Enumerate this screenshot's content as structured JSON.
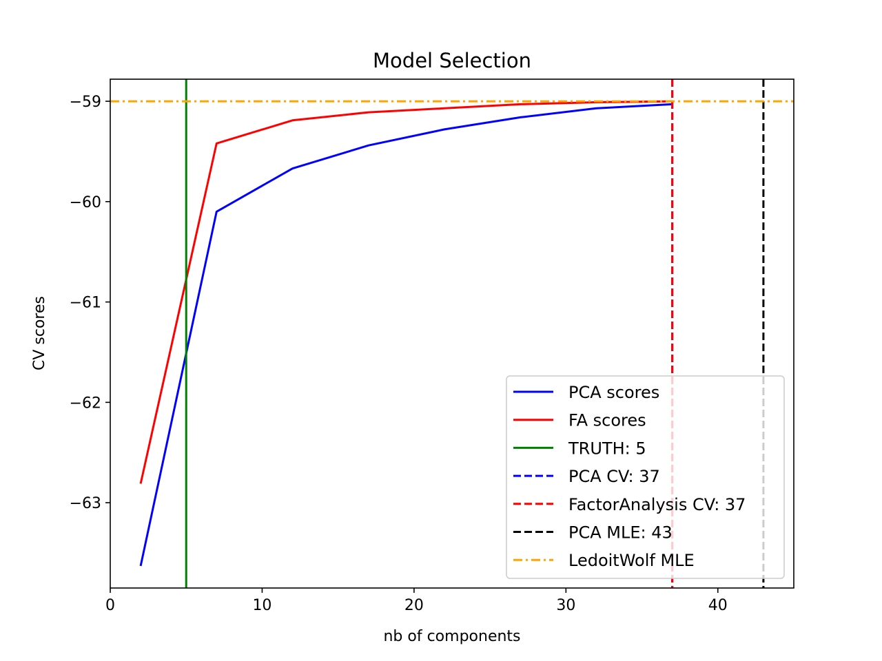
{
  "chart_data": {
    "type": "line",
    "title": "Model Selection",
    "xlabel": "nb of components",
    "ylabel": "CV scores",
    "xlim": [
      0,
      45
    ],
    "ylim": [
      -63.85,
      -58.78
    ],
    "xticks": [
      0,
      10,
      20,
      30,
      40
    ],
    "xtick_labels": [
      "0",
      "10",
      "20",
      "30",
      "40"
    ],
    "yticks": [
      -59,
      -60,
      -61,
      -62,
      -63
    ],
    "ytick_labels": [
      "−59",
      "−60",
      "−61",
      "−62",
      "−63"
    ],
    "grid": false,
    "legend_position": "lower-right",
    "series": [
      {
        "name": "PCA scores",
        "color": "#0000ff",
        "style": "solid",
        "x": [
          2,
          7,
          12,
          17,
          22,
          27,
          32,
          37
        ],
        "y": [
          -63.63,
          -60.1,
          -59.67,
          -59.44,
          -59.28,
          -59.16,
          -59.07,
          -59.03
        ]
      },
      {
        "name": "FA scores",
        "color": "#ff0000",
        "style": "solid",
        "x": [
          2,
          7,
          12,
          17,
          22,
          27,
          32,
          37
        ],
        "y": [
          -62.81,
          -59.42,
          -59.19,
          -59.11,
          -59.07,
          -59.03,
          -59.01,
          -59.0
        ]
      }
    ],
    "vlines": [
      {
        "name": "TRUTH: 5",
        "x": 5,
        "color": "#008000",
        "style": "solid"
      },
      {
        "name": "PCA CV: 37",
        "x": 37,
        "color": "#0000ff",
        "style": "dashed"
      },
      {
        "name": "FactorAnalysis CV: 37",
        "x": 37,
        "color": "#ff0000",
        "style": "dashed"
      },
      {
        "name": "PCA MLE: 43",
        "x": 43,
        "color": "#000000",
        "style": "dashed"
      }
    ],
    "hlines": [
      {
        "name": "LedoitWolf MLE",
        "y": -59.0,
        "color": "#ffa500",
        "style": "dashdot"
      }
    ],
    "legend": [
      {
        "label": "PCA scores",
        "color": "#0000ff",
        "style": "solid"
      },
      {
        "label": "FA scores",
        "color": "#ff0000",
        "style": "solid"
      },
      {
        "label": "TRUTH: 5",
        "color": "#008000",
        "style": "solid"
      },
      {
        "label": "PCA CV: 37",
        "color": "#0000ff",
        "style": "dashed"
      },
      {
        "label": "FactorAnalysis CV: 37",
        "color": "#ff0000",
        "style": "dashed"
      },
      {
        "label": "PCA MLE: 43",
        "color": "#000000",
        "style": "dashed"
      },
      {
        "label": "LedoitWolf MLE",
        "color": "#ffa500",
        "style": "dashdot"
      }
    ]
  }
}
